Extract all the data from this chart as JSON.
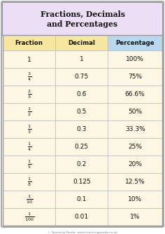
{
  "title": "Fractions, Decimals\nand Percentages",
  "title_bg": "#ecdff5",
  "header_bg_col0": "#f5e6a0",
  "header_bg_col1": "#f5e6a0",
  "header_bg_col2": "#b8d8f0",
  "row_bg": "#fdf6e3",
  "border_color": "#bbbbbb",
  "text_color": "#111111",
  "headers": [
    "Fraction",
    "Decimal",
    "Percentage"
  ],
  "fractions": [
    "1",
    "\\frac{3}{4}",
    "\\frac{2}{3}",
    "\\frac{1}{2}",
    "\\frac{1}{3}",
    "\\frac{1}{4}",
    "\\frac{1}{5}",
    "\\frac{1}{8}",
    "\\frac{1}{10}",
    "\\frac{1}{100}"
  ],
  "decimal_display": [
    "1",
    "0.75",
    "0.6̇",
    "0.5",
    "0.3̇",
    "0.25",
    "0.2",
    "0.125",
    "0.1",
    "0.01"
  ],
  "percentages": [
    "100%",
    "75%",
    "66.6̇%",
    "50%",
    "33.3̇%",
    "25%",
    "20%",
    "12.5%",
    "10%",
    "1%"
  ],
  "footer_text": "© Teaching Panda  www.teachingpanda.co.uk",
  "outer_border": "#999999",
  "fig_bg": "#ffffff"
}
